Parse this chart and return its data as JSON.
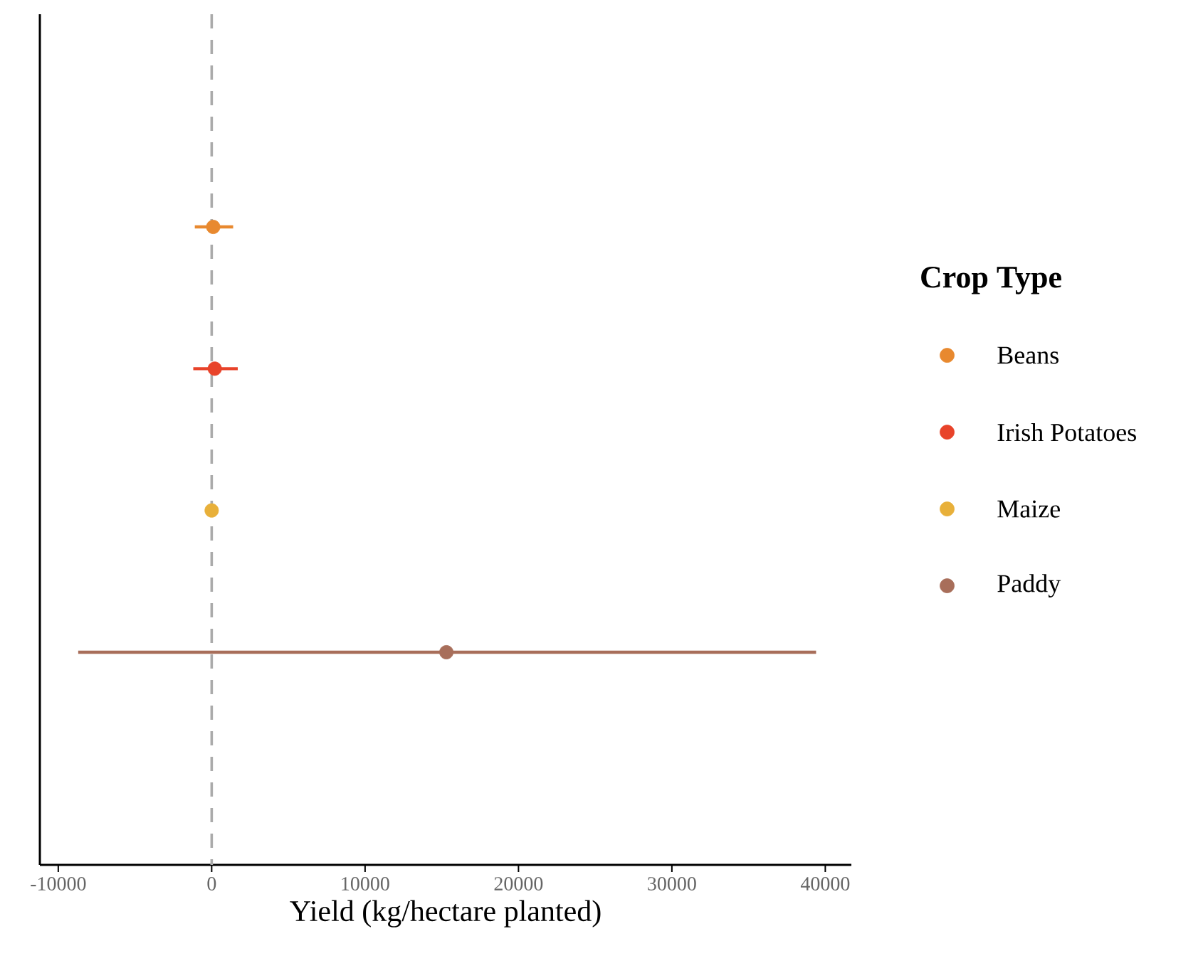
{
  "chart_data": {
    "type": "scatter",
    "orientation": "horizontal",
    "categories": [
      null,
      null,
      null,
      null,
      null,
      null
    ],
    "xlabel": "Yield (kg/hectare planted)",
    "legend_title": "Crop Type",
    "legend": "right",
    "marker": "circle",
    "tick_labels": "x",
    "xlim": [
      -11200,
      41700
    ],
    "xticks": [
      -10000,
      0,
      10000,
      20000,
      30000,
      40000
    ],
    "ref_lines": [
      {
        "axis": "x",
        "value": 0,
        "color": "#aaaaaa",
        "line_style": "dashed"
      }
    ],
    "series": [
      {
        "name": "Beans",
        "color": "#e8892f",
        "values": [
          null,
          100,
          null,
          null,
          null,
          null
        ],
        "errors": [
          null,
          [
            -1100,
            1400
          ],
          null,
          null,
          null,
          null
        ]
      },
      {
        "name": "Irish Potatoes",
        "color": "#e8432a",
        "values": [
          null,
          null,
          200,
          null,
          null,
          null
        ],
        "errors": [
          null,
          null,
          [
            -1200,
            1700
          ],
          null,
          null,
          null
        ]
      },
      {
        "name": "Maize",
        "color": "#e8b03a",
        "values": [
          null,
          null,
          null,
          0,
          null,
          null
        ]
      },
      {
        "name": "Paddy",
        "color": "#a86e5a",
        "values": [
          null,
          null,
          null,
          null,
          15300,
          null
        ],
        "errors": [
          null,
          null,
          null,
          null,
          [
            -8700,
            39400
          ],
          null
        ]
      }
    ]
  }
}
